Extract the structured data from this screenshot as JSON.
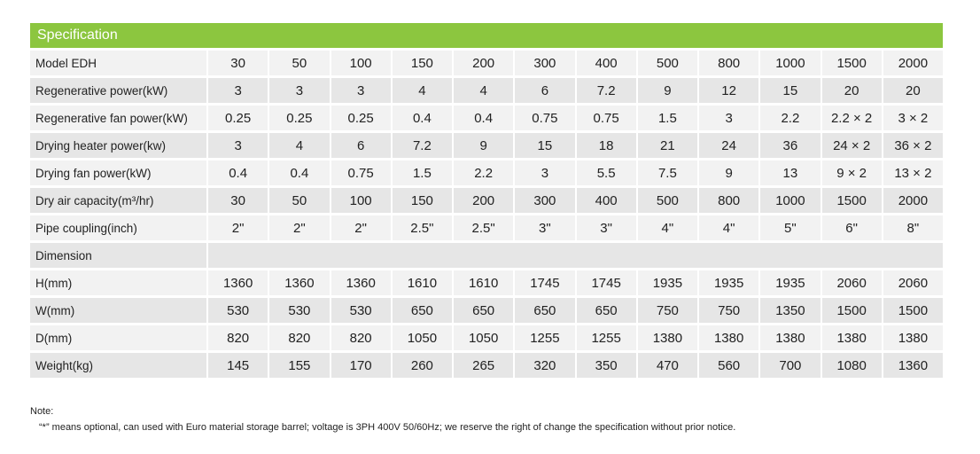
{
  "header": {
    "title": "Specification"
  },
  "rows": [
    {
      "label": "Model EDH",
      "values": [
        "30",
        "50",
        "100",
        "150",
        "200",
        "300",
        "400",
        "500",
        "800",
        "1000",
        "1500",
        "2000"
      ]
    },
    {
      "label": "Regenerative power(kW)",
      "values": [
        "3",
        "3",
        "3",
        "4",
        "4",
        "6",
        "7.2",
        "9",
        "12",
        "15",
        "20",
        "20"
      ]
    },
    {
      "label": "Regenerative fan power(kW)",
      "values": [
        "0.25",
        "0.25",
        "0.25",
        "0.4",
        "0.4",
        "0.75",
        "0.75",
        "1.5",
        "3",
        "2.2",
        "2.2 × 2",
        "3 × 2"
      ]
    },
    {
      "label": "Drying heater power(kw)",
      "values": [
        "3",
        "4",
        "6",
        "7.2",
        "9",
        "15",
        "18",
        "21",
        "24",
        "36",
        "24 × 2",
        "36 × 2"
      ]
    },
    {
      "label": "Drying fan power(kW)",
      "values": [
        "0.4",
        "0.4",
        "0.75",
        "1.5",
        "2.2",
        "3",
        "5.5",
        "7.5",
        "9",
        "13",
        "9 × 2",
        "13 × 2"
      ]
    },
    {
      "label": "Dry air capacity(m³/hr)",
      "values": [
        "30",
        "50",
        "100",
        "150",
        "200",
        "300",
        "400",
        "500",
        "800",
        "1000",
        "1500",
        "2000"
      ]
    },
    {
      "label": "Pipe coupling(inch)",
      "values": [
        "2\"",
        "2\"",
        "2\"",
        "2.5\"",
        "2.5\"",
        "3\"",
        "3\"",
        "4\"",
        "4\"",
        "5\"",
        "6\"",
        "8\""
      ]
    },
    {
      "label": "Dimension",
      "values": []
    },
    {
      "label": "H(mm)",
      "values": [
        "1360",
        "1360",
        "1360",
        "1610",
        "1610",
        "1745",
        "1745",
        "1935",
        "1935",
        "1935",
        "2060",
        "2060"
      ]
    },
    {
      "label": "W(mm)",
      "values": [
        "530",
        "530",
        "530",
        "650",
        "650",
        "650",
        "650",
        "750",
        "750",
        "1350",
        "1500",
        "1500"
      ]
    },
    {
      "label": "D(mm)",
      "values": [
        "820",
        "820",
        "820",
        "1050",
        "1050",
        "1255",
        "1255",
        "1380",
        "1380",
        "1380",
        "1380",
        "1380"
      ]
    },
    {
      "label": "Weight(kg)",
      "values": [
        "145",
        "155",
        "170",
        "260",
        "265",
        "320",
        "350",
        "470",
        "560",
        "700",
        "1080",
        "1360"
      ]
    }
  ],
  "notes": {
    "label": "Note:",
    "text": "“*” means optional, can used with Euro material storage barrel; voltage is 3PH 400V 50/60Hz; we reserve the right of change the specification without prior notice."
  }
}
